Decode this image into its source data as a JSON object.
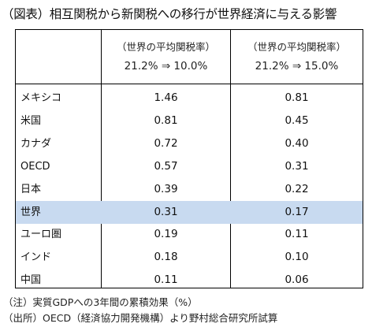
{
  "title": "（図表）相互関税から新関税への移行が世界経済に与える影響",
  "table": {
    "columns": [
      {
        "line1": "（世界の平均関税率）",
        "line2": "21.2% ⇒ 10.0%"
      },
      {
        "line1": "（世界の平均関税率）",
        "line2": "21.2% ⇒ 15.0%"
      }
    ],
    "rows": [
      {
        "label": "メキシコ",
        "v1": "1.46",
        "v2": "0.81"
      },
      {
        "label": "米国",
        "v1": "0.81",
        "v2": "0.45"
      },
      {
        "label": "カナダ",
        "v1": "0.72",
        "v2": "0.40"
      },
      {
        "label": "OECD",
        "v1": "0.57",
        "v2": "0.31"
      },
      {
        "label": "日本",
        "v1": "0.39",
        "v2": "0.22"
      },
      {
        "label": "世界",
        "v1": "0.31",
        "v2": "0.17"
      },
      {
        "label": "ユーロ圏",
        "v1": "0.19",
        "v2": "0.11"
      },
      {
        "label": "インド",
        "v1": "0.18",
        "v2": "0.10"
      },
      {
        "label": "中国",
        "v1": "0.11",
        "v2": "0.06"
      }
    ],
    "highlight_row": "世界",
    "highlight_color": "#c8daf0"
  },
  "notes": {
    "note": "（注）実質GDPへの3年間の累積効果（%）",
    "source": "（出所）OECD（経済協力開発機構）より野村総合研究所試算"
  }
}
